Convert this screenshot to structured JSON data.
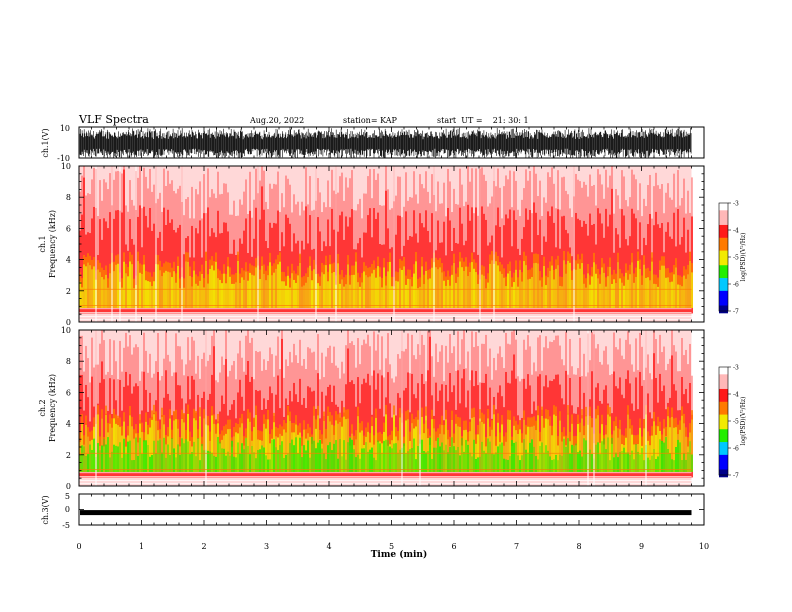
{
  "header": {
    "title": "VLF Spectra",
    "date": "Aug.20, 2022",
    "station": "station= KAP",
    "start_ut": "start  UT =    21: 30: 1"
  },
  "chart_data": [
    {
      "type": "line",
      "name": "ch1-waveform",
      "ylabel": "ch.1(V)",
      "ylim": [
        -10,
        10
      ],
      "yticks": [
        10,
        -10
      ],
      "xlim": [
        0,
        10
      ],
      "xdata_end": 9.8,
      "approx_amplitude": [
        -10,
        10
      ],
      "grid": false
    },
    {
      "type": "heatmap",
      "name": "ch1-spectrogram",
      "ylabel": "ch.1\nFrequency (kHz)",
      "ylim": [
        0,
        10
      ],
      "yticks": [
        0,
        2,
        4,
        6,
        8,
        10
      ],
      "xlim": [
        0,
        10
      ],
      "xdata_end": 9.8,
      "colorbar": {
        "label": "log(PSD)(V²/Hz)",
        "range": [
          -7,
          -3
        ],
        "ticks": [
          -3,
          -4,
          -5,
          -6,
          -7
        ]
      },
      "approx_profile": {
        "yellow_band_top_kHz": 3.6,
        "red_dense_top_kHz": 5.5,
        "green_band_top_kHz": 0
      }
    },
    {
      "type": "heatmap",
      "name": "ch2-spectrogram",
      "ylabel": "ch.2\nFrequency (kHz)",
      "ylim": [
        0,
        10
      ],
      "yticks": [
        0,
        2,
        4,
        6,
        8,
        10
      ],
      "xlim": [
        0,
        10
      ],
      "xdata_end": 9.8,
      "colorbar": {
        "label": "log(PSD)(V²/Hz)",
        "range": [
          -7,
          -3
        ],
        "ticks": [
          -3,
          -4,
          -5,
          -6,
          -7
        ]
      },
      "approx_profile": {
        "yellow_band_top_kHz": 4.2,
        "red_dense_top_kHz": 5.5,
        "green_band_top_kHz": 3.0
      }
    },
    {
      "type": "line",
      "name": "ch3-waveform",
      "ylabel": "ch.3(V)",
      "ylim": [
        -5,
        5
      ],
      "yticks": [
        5,
        0,
        -5
      ],
      "xlim": [
        0,
        10
      ],
      "xdata_end": 9.8,
      "approx_level": -1.0,
      "xlabel": "Time (min)",
      "xticks": [
        0,
        1,
        2,
        3,
        4,
        5,
        6,
        7,
        8,
        9,
        10
      ]
    }
  ],
  "colors": {
    "white": "#ffffff",
    "light_red": "#ffb8b8",
    "red": "#ff1a1a",
    "orange": "#ff7a00",
    "yellow": "#f2ea00",
    "green": "#22ee00",
    "cyan": "#00c8ff",
    "blue": "#0000ff",
    "navy": "#00008a",
    "black": "#000000"
  }
}
